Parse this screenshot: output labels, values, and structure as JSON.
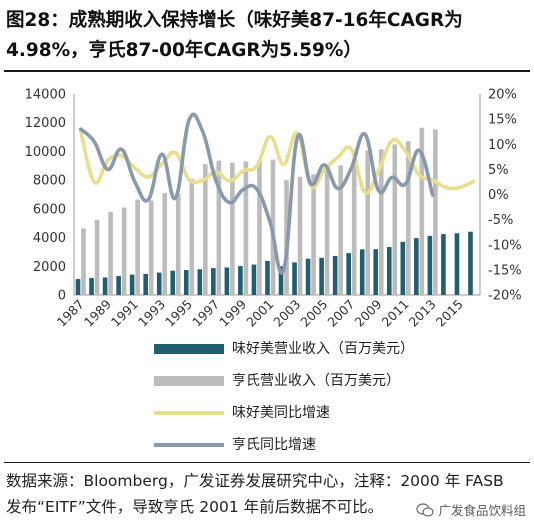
{
  "title": {
    "line1": "图28：成熟期收入保持增长（味好美87-16年CAGR为",
    "line2": "4.98%，亨氏87-00年CAGR为5.59%）"
  },
  "legend": {
    "items": [
      {
        "label": "味好美营业收入（百万美元）",
        "color": "#1f5f6e",
        "kind": "bar"
      },
      {
        "label": "亨氏营业收入（百万美元）",
        "color": "#bcbcbc",
        "kind": "bar"
      },
      {
        "label": "味好美同比增速",
        "color": "#e8df8c",
        "kind": "line"
      },
      {
        "label": "亨氏同比增速",
        "color": "#8899ad",
        "kind": "line"
      }
    ]
  },
  "source": {
    "line1": "数据来源：Bloomberg，广发证券发展研究中心，注释：2000 年 FASB",
    "line2": "发布“EITF”文件，导致亨氏 2001 年前后数据不可比。"
  },
  "watermark": {
    "text": "广发食品饮料组",
    "icon": "wechat-icon"
  },
  "chart_data": {
    "type": "bar",
    "title": "",
    "x": [
      1987,
      1988,
      1989,
      1990,
      1991,
      1992,
      1993,
      1994,
      1995,
      1996,
      1997,
      1998,
      1999,
      2000,
      2001,
      2002,
      2003,
      2004,
      2005,
      2006,
      2007,
      2008,
      2009,
      2010,
      2011,
      2012,
      2013,
      2014,
      2015,
      2016
    ],
    "x_tick_labels": [
      "1987",
      "1989",
      "1991",
      "1993",
      "1995",
      "1997",
      "1999",
      "2001",
      "2003",
      "2005",
      "2007",
      "2009",
      "2011",
      "2013",
      "2015"
    ],
    "y_left": {
      "ylim": [
        0,
        14000
      ],
      "ticks": [
        0,
        2000,
        4000,
        6000,
        8000,
        10000,
        12000,
        14000
      ],
      "tick_labels": [
        "0",
        "2000",
        "4000",
        "6000",
        "8000",
        "10000",
        "12000",
        "14000"
      ]
    },
    "y_right": {
      "ylim": [
        -20,
        20
      ],
      "ticks": [
        -20,
        -15,
        -10,
        -5,
        0,
        5,
        10,
        15,
        20
      ],
      "tick_labels": [
        "-20%",
        "-15%",
        "-10%",
        "-5%",
        "0%",
        "5%",
        "10%",
        "15%",
        "20%"
      ]
    },
    "grid": false,
    "series": [
      {
        "name": "味好美营业收入（百万美元）",
        "type": "bar",
        "axis": "left",
        "color": "#1f5f6e",
        "values": [
          1110,
          1180,
          1220,
          1320,
          1420,
          1470,
          1560,
          1690,
          1740,
          1790,
          1870,
          1920,
          2010,
          2120,
          2370,
          2000,
          2270,
          2530,
          2590,
          2720,
          2920,
          3180,
          3190,
          3340,
          3700,
          3960,
          4120,
          4240,
          4300,
          4410
        ]
      },
      {
        "name": "亨氏营业收入（百万美元）",
        "type": "bar",
        "axis": "left",
        "color": "#bcbcbc",
        "values": [
          4640,
          5240,
          5800,
          6090,
          6650,
          6580,
          7100,
          7050,
          8090,
          9110,
          9360,
          9210,
          9300,
          9400,
          9430,
          8000,
          8240,
          8410,
          8910,
          9020,
          9500,
          10070,
          10150,
          10490,
          10710,
          11650,
          11530,
          null,
          null,
          null
        ]
      },
      {
        "name": "味好美同比增速",
        "type": "line",
        "axis": "right",
        "color": "#e8df8c",
        "values": [
          12.6,
          2.5,
          6.8,
          7.7,
          5.3,
          3.5,
          6.1,
          8.3,
          3.0,
          2.8,
          4.5,
          2.7,
          4.7,
          5.6,
          11.5,
          6.0,
          12.2,
          1.8,
          4.9,
          7.4,
          9.0,
          0.4,
          4.7,
          10.7,
          8.6,
          3.9,
          2.9,
          1.4,
          1.4,
          2.6
        ]
      },
      {
        "name": "亨氏同比增速",
        "type": "line",
        "axis": "right",
        "color": "#8899ad",
        "values": [
          13.0,
          10.5,
          5.0,
          9.0,
          2.5,
          -1.0,
          8.0,
          -0.7,
          14.8,
          12.6,
          2.7,
          -1.6,
          1.0,
          1.1,
          -5.6,
          -14.9,
          11.3,
          2.1,
          5.9,
          1.2,
          5.3,
          12.0,
          0.8,
          3.4,
          2.1,
          8.8,
          -0.1,
          null,
          null,
          null
        ]
      }
    ]
  }
}
